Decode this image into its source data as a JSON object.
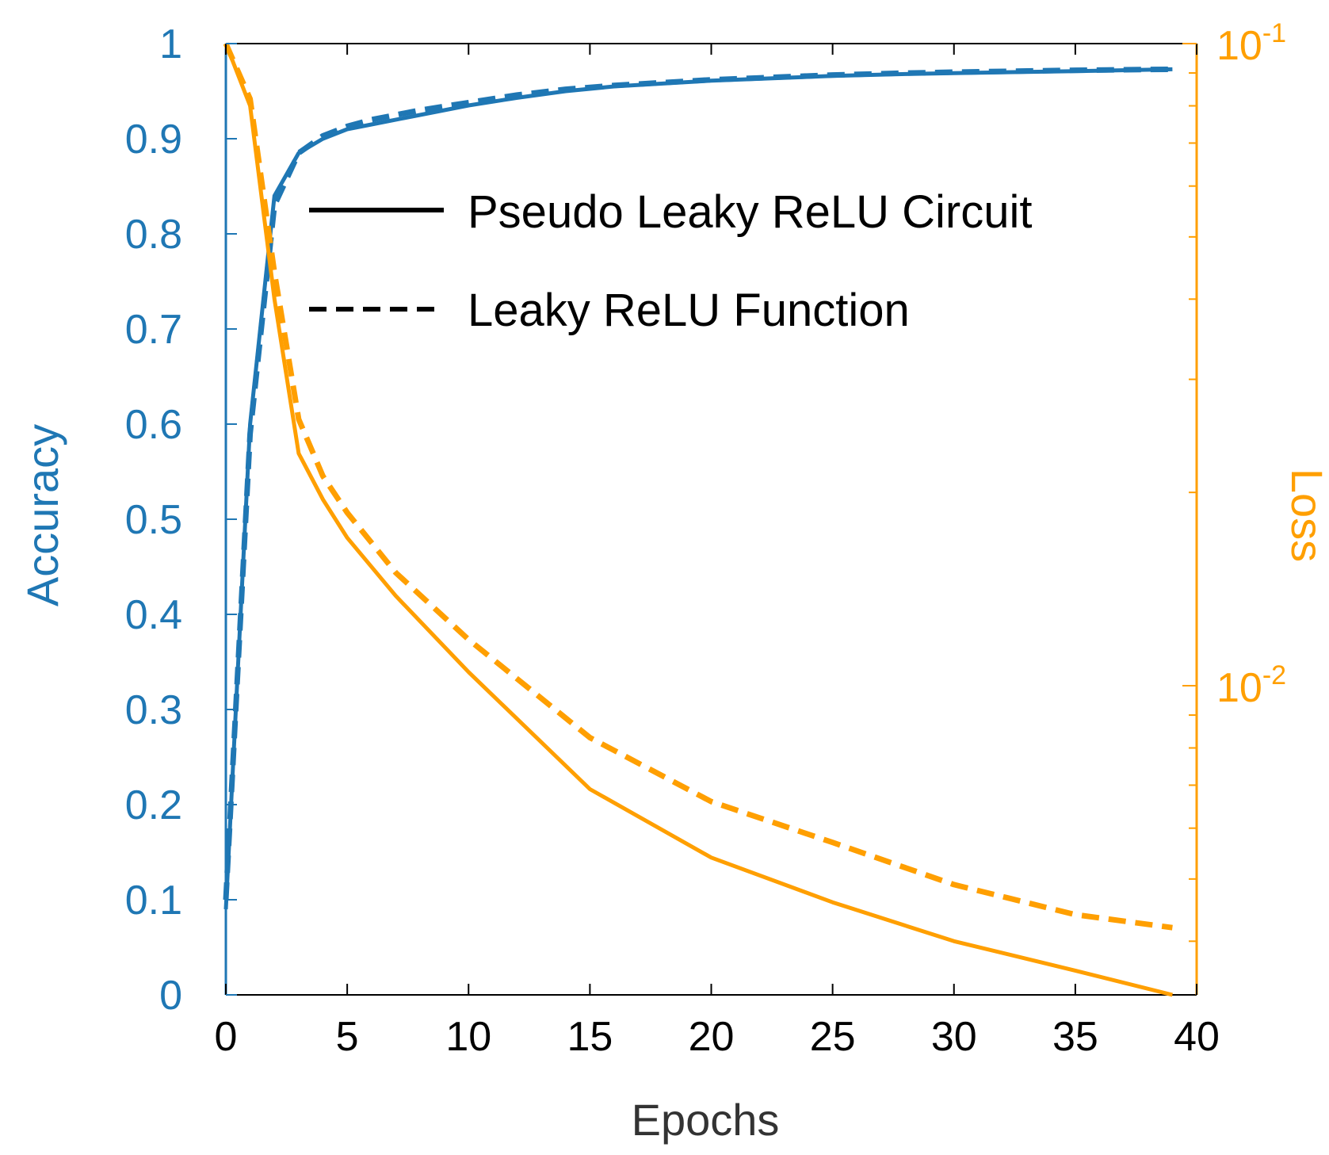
{
  "colors": {
    "accuracy": "#1f77b4",
    "loss": "#ff9f00",
    "axis": "#000000",
    "legend_text": "#000000"
  },
  "chart_data": {
    "type": "line",
    "title": "",
    "xlabel": "Epochs",
    "ylabel_left": "Accuracy",
    "ylabel_right": "Loss",
    "xlim": [
      0,
      40
    ],
    "ylim_left": [
      0,
      1
    ],
    "ylim_right": [
      0.0033,
      0.1
    ],
    "right_scale": "log",
    "grid": false,
    "legend_position": "upper-center",
    "x_ticks": [
      "0",
      "5",
      "10",
      "15",
      "20",
      "25",
      "30",
      "35",
      "40"
    ],
    "x_tick_values": [
      0,
      5,
      10,
      15,
      20,
      25,
      30,
      35,
      40
    ],
    "y_left_ticks": [
      "0",
      "0.1",
      "0.2",
      "0.3",
      "0.4",
      "0.5",
      "0.6",
      "0.7",
      "0.8",
      "0.9",
      "1"
    ],
    "y_left_tick_values": [
      0,
      0.1,
      0.2,
      0.3,
      0.4,
      0.5,
      0.6,
      0.7,
      0.8,
      0.9,
      1
    ],
    "y_right_ticks": [
      {
        "value": 0.1,
        "base": "10",
        "exp": "-1"
      },
      {
        "value": 0.01,
        "base": "10",
        "exp": "-2"
      }
    ],
    "legend": [
      {
        "label": "Pseudo Leaky ReLU Circuit",
        "style": "solid"
      },
      {
        "label": "Leaky ReLU Function",
        "style": "dashed"
      }
    ],
    "series": [
      {
        "name": "Pseudo Leaky ReLU Circuit",
        "metric": "accuracy",
        "style": "solid",
        "x": [
          0,
          1,
          2,
          3,
          4,
          5,
          6,
          8,
          10,
          12,
          14,
          16,
          18,
          20,
          22,
          25,
          28,
          30,
          35,
          39
        ],
        "y": [
          0.09,
          0.6,
          0.84,
          0.885,
          0.9,
          0.91,
          0.915,
          0.925,
          0.935,
          0.943,
          0.95,
          0.955,
          0.958,
          0.961,
          0.963,
          0.966,
          0.968,
          0.969,
          0.971,
          0.973
        ]
      },
      {
        "name": "Leaky ReLU Function",
        "metric": "accuracy",
        "style": "dashed",
        "x": [
          0,
          1,
          2,
          3,
          4,
          5,
          6,
          8,
          10,
          12,
          14,
          16,
          18,
          20,
          22,
          25,
          28,
          30,
          35,
          39
        ],
        "y": [
          0.1,
          0.59,
          0.83,
          0.885,
          0.903,
          0.913,
          0.92,
          0.93,
          0.938,
          0.946,
          0.952,
          0.956,
          0.959,
          0.962,
          0.964,
          0.967,
          0.969,
          0.97,
          0.972,
          0.973
        ]
      },
      {
        "name": "Pseudo Leaky ReLU Circuit",
        "metric": "loss",
        "style": "solid",
        "x": [
          0,
          1,
          2,
          3,
          4,
          5,
          7,
          10,
          15,
          20,
          25,
          30,
          35,
          39
        ],
        "y": [
          0.1,
          0.08,
          0.04,
          0.023,
          0.0195,
          0.017,
          0.0138,
          0.0105,
          0.0069,
          0.0054,
          0.0046,
          0.004,
          0.0036,
          0.0033
        ]
      },
      {
        "name": "Leaky ReLU Function",
        "metric": "loss",
        "style": "dashed",
        "x": [
          0,
          1,
          2,
          3,
          4,
          5,
          7,
          10,
          15,
          20,
          25,
          30,
          35,
          39
        ],
        "y": [
          0.1,
          0.082,
          0.044,
          0.026,
          0.0212,
          0.0186,
          0.015,
          0.0118,
          0.0083,
          0.0066,
          0.0057,
          0.0049,
          0.0044,
          0.0042
        ]
      }
    ]
  }
}
